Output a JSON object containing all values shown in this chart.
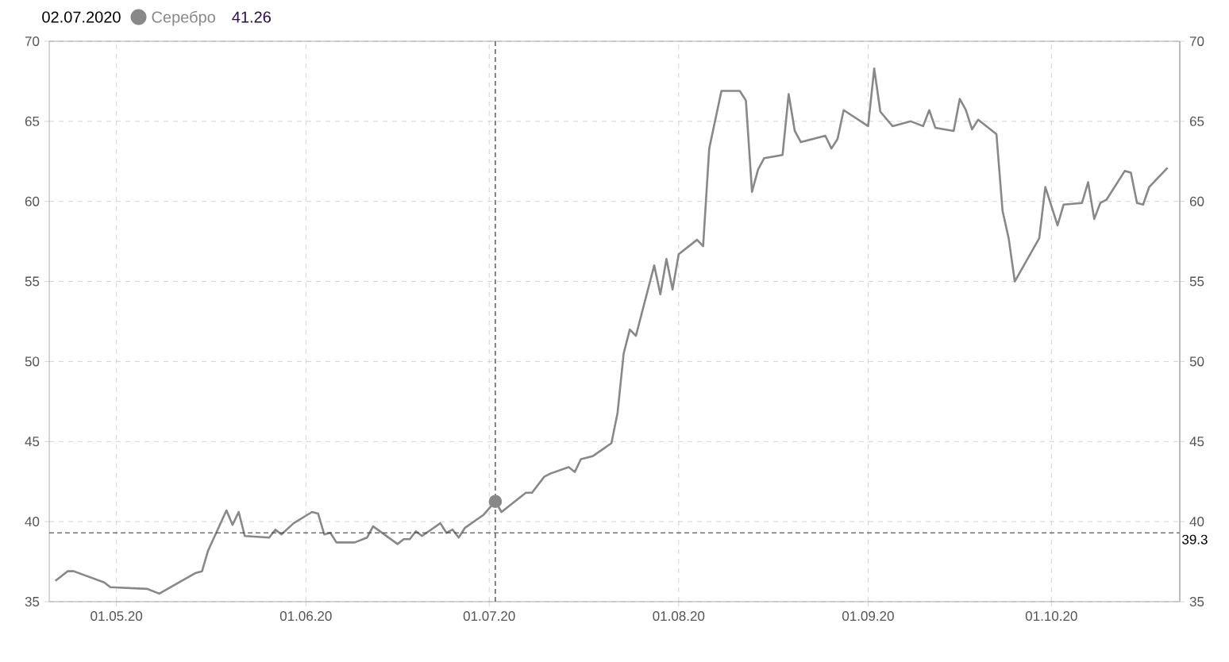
{
  "chart_data": {
    "type": "line",
    "x": [
      "2020-04-21",
      "2020-04-23",
      "2020-04-24",
      "2020-04-29",
      "2020-04-30",
      "2020-05-06",
      "2020-05-08",
      "2020-05-14",
      "2020-05-15",
      "2020-05-16",
      "2020-05-19",
      "2020-05-20",
      "2020-05-21",
      "2020-05-22",
      "2020-05-26",
      "2020-05-27",
      "2020-05-28",
      "2020-05-30",
      "2020-06-02",
      "2020-06-03",
      "2020-06-04",
      "2020-06-05",
      "2020-06-06",
      "2020-06-09",
      "2020-06-11",
      "2020-06-12",
      "2020-06-16",
      "2020-06-17",
      "2020-06-18",
      "2020-06-19",
      "2020-06-20",
      "2020-06-23",
      "2020-06-24",
      "2020-06-25",
      "2020-06-26",
      "2020-06-27",
      "2020-06-30",
      "2020-07-02",
      "2020-07-03",
      "2020-07-04",
      "2020-07-07",
      "2020-07-08",
      "2020-07-10",
      "2020-07-11",
      "2020-07-14",
      "2020-07-15",
      "2020-07-16",
      "2020-07-18",
      "2020-07-21",
      "2020-07-22",
      "2020-07-23",
      "2020-07-24",
      "2020-07-25",
      "2020-07-28",
      "2020-07-29",
      "2020-07-30",
      "2020-07-31",
      "2020-08-01",
      "2020-08-04",
      "2020-08-05",
      "2020-08-06",
      "2020-08-07",
      "2020-08-08",
      "2020-08-11",
      "2020-08-12",
      "2020-08-13",
      "2020-08-14",
      "2020-08-15",
      "2020-08-18",
      "2020-08-19",
      "2020-08-20",
      "2020-08-21",
      "2020-08-25",
      "2020-08-26",
      "2020-08-27",
      "2020-08-28",
      "2020-09-01",
      "2020-09-02",
      "2020-09-03",
      "2020-09-05",
      "2020-09-08",
      "2020-09-10",
      "2020-09-11",
      "2020-09-12",
      "2020-09-15",
      "2020-09-16",
      "2020-09-17",
      "2020-09-18",
      "2020-09-19",
      "2020-09-22",
      "2020-09-23",
      "2020-09-24",
      "2020-09-25",
      "2020-09-29",
      "2020-09-30",
      "2020-10-02",
      "2020-10-03",
      "2020-10-06",
      "2020-10-07",
      "2020-10-08",
      "2020-10-09",
      "2020-10-10",
      "2020-10-13",
      "2020-10-14",
      "2020-10-15",
      "2020-10-16",
      "2020-10-17",
      "2020-10-20"
    ],
    "series": [
      {
        "name": "Серебро",
        "color": "#888888",
        "marker": "none",
        "values": [
          36.3,
          36.9,
          36.9,
          36.2,
          35.9,
          35.8,
          35.5,
          36.8,
          36.9,
          38.2,
          40.7,
          39.8,
          40.6,
          39.1,
          39.0,
          39.5,
          39.2,
          39.9,
          40.6,
          40.5,
          39.2,
          39.3,
          38.7,
          38.7,
          39.0,
          39.7,
          38.6,
          38.9,
          38.9,
          39.4,
          39.1,
          39.9,
          39.3,
          39.5,
          39.0,
          39.6,
          40.4,
          41.26,
          40.6,
          40.9,
          41.8,
          41.8,
          42.8,
          43.0,
          43.4,
          43.1,
          43.9,
          44.1,
          44.9,
          46.8,
          50.5,
          52.0,
          51.6,
          56.0,
          54.2,
          56.4,
          54.5,
          56.7,
          57.6,
          57.2,
          63.3,
          65.1,
          66.9,
          66.9,
          66.3,
          60.6,
          62.0,
          62.7,
          62.9,
          66.7,
          64.4,
          63.7,
          64.1,
          63.3,
          63.9,
          65.7,
          64.7,
          68.3,
          65.6,
          64.7,
          65.0,
          64.7,
          65.7,
          64.6,
          64.4,
          66.4,
          65.7,
          64.5,
          65.1,
          64.2,
          59.4,
          57.7,
          55.0,
          57.7,
          60.9,
          58.5,
          59.8,
          59.9,
          61.2,
          58.9,
          59.9,
          60.1,
          61.9,
          61.8,
          59.9,
          59.8,
          60.9,
          62.1
        ]
      },
      {
        "type": "scatter",
        "x": [
          "2020-07-02"
        ],
        "color": "#888888",
        "marker": "circle",
        "values": [
          41.26
        ]
      }
    ],
    "xlim": [
      "2020-04-20",
      "2020-10-22"
    ],
    "xticks": [
      {
        "value": "2020-05-01",
        "label": "01.05.20"
      },
      {
        "value": "2020-06-01",
        "label": "01.06.20"
      },
      {
        "value": "2020-07-01",
        "label": "01.07.20"
      },
      {
        "value": "2020-08-01",
        "label": "01.08.20"
      },
      {
        "value": "2020-09-01",
        "label": "01.09.20"
      },
      {
        "value": "2020-10-01",
        "label": "01.10.20"
      }
    ],
    "ylim": [
      35,
      70
    ],
    "yticks": [
      35,
      40,
      45,
      50,
      55,
      60,
      65,
      70
    ],
    "y2lim": [
      35,
      70
    ],
    "y2ticks": [
      35,
      40,
      45,
      50,
      55,
      60,
      65,
      70
    ],
    "ref_lines": [
      {
        "axis": "x",
        "value": "2020-07-02"
      },
      {
        "axis": "y",
        "value": 39.3,
        "label": "39.3"
      }
    ],
    "annotations": [
      "02.07.2020",
      "41.26"
    ],
    "grid": true,
    "legend": "top left",
    "line_style": "solid"
  }
}
